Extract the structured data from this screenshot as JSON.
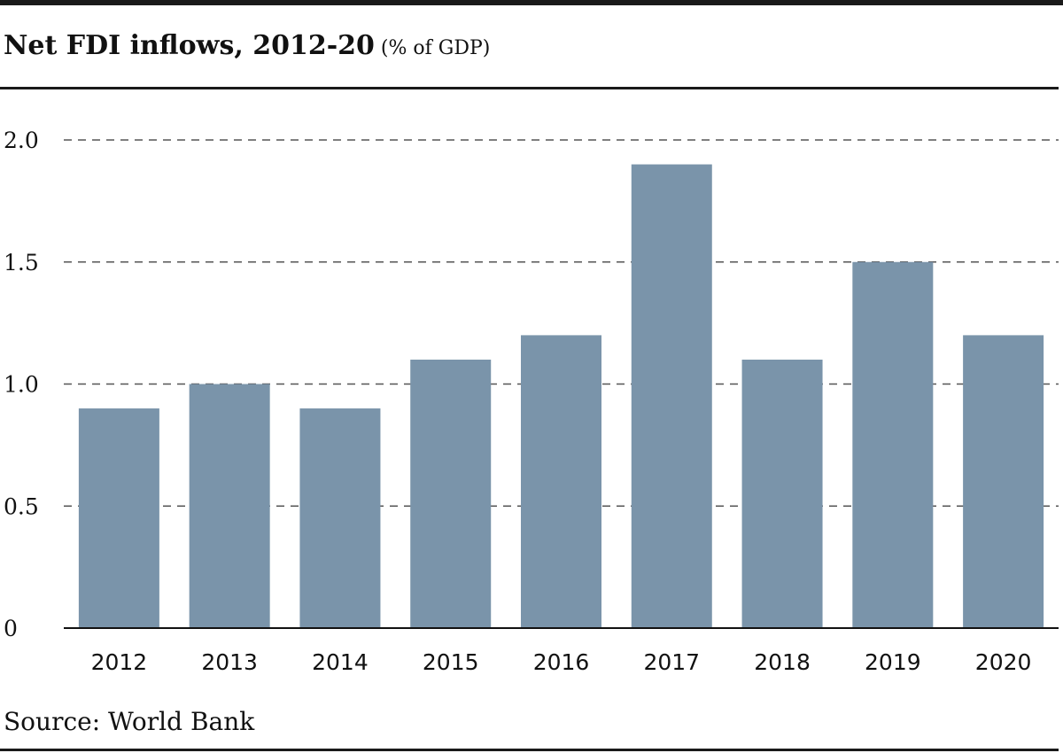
{
  "header": {
    "title": "Net FDI inflows, 2012-20",
    "unit": " (% of GDP)"
  },
  "footer": {
    "source": "Source: World Bank"
  },
  "chart_data": {
    "type": "bar",
    "title": "Net FDI inflows, 2012-20",
    "subtitle": "(% of GDP)",
    "categories": [
      "2012",
      "2013",
      "2014",
      "2015",
      "2016",
      "2017",
      "2018",
      "2019",
      "2020"
    ],
    "values": [
      0.9,
      1.0,
      0.9,
      1.1,
      1.2,
      1.9,
      1.1,
      1.5,
      1.2
    ],
    "ylim": [
      0,
      2.0
    ],
    "yticks": [
      0,
      0.5,
      1.0,
      1.5,
      2.0
    ],
    "ytick_labels": [
      "0",
      "0.5",
      "1.0",
      "1.5",
      "2.0"
    ],
    "grid": "horizontal-dashed",
    "bar_color": "#7a94aa",
    "xlabel": "",
    "ylabel": ""
  }
}
